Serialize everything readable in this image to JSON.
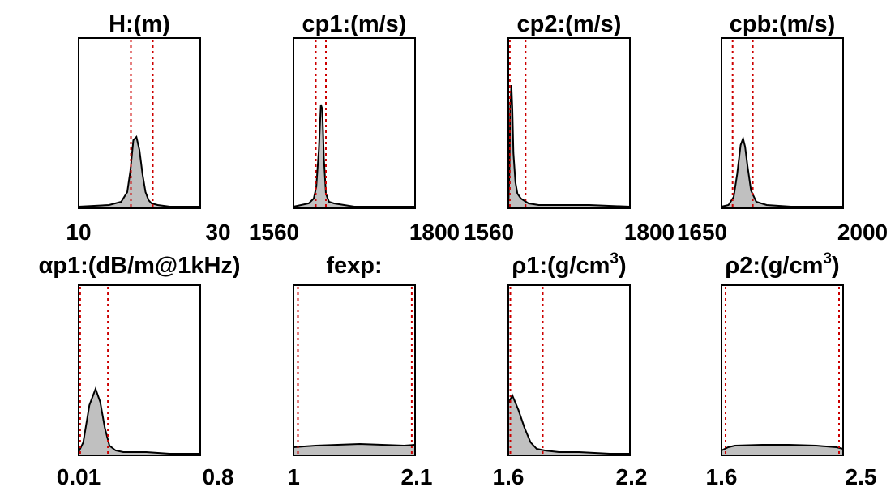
{
  "figure": {
    "line_color": "#000000",
    "fill_color": "#c0c0c0",
    "bound_color": "#cc0000"
  },
  "chart_data": [
    {
      "type": "area",
      "title_main": "H:(m)",
      "title_sup": "",
      "xlim": [
        10,
        30
      ],
      "tick_labels": [
        "10",
        "30"
      ],
      "bounds": [
        18.6,
        22.2
      ],
      "x": [
        10,
        15,
        17,
        18,
        18.5,
        19,
        19.5,
        20,
        20.5,
        21,
        21.5,
        22,
        23,
        25,
        30
      ],
      "y": [
        0,
        0.01,
        0.03,
        0.09,
        0.22,
        0.41,
        0.43,
        0.35,
        0.2,
        0.09,
        0.04,
        0.02,
        0.01,
        0,
        0
      ]
    },
    {
      "type": "area",
      "title_main": "cp1:(m/s)",
      "title_sup": "",
      "xlim": [
        1560,
        1800
      ],
      "tick_labels": [
        "1560",
        "1800"
      ],
      "bounds": [
        1604,
        1624
      ],
      "x": [
        1560,
        1590,
        1600,
        1605,
        1610,
        1614,
        1617,
        1620,
        1624,
        1630,
        1640,
        1660,
        1680,
        1800
      ],
      "y": [
        0,
        0.02,
        0.05,
        0.12,
        0.35,
        0.63,
        0.6,
        0.3,
        0.08,
        0.03,
        0.02,
        0.01,
        0,
        0
      ]
    },
    {
      "type": "area",
      "title_main": "cp2:(m/s)",
      "title_sup": "",
      "xlim": [
        1560,
        1800
      ],
      "tick_labels": [
        "1560",
        "1800"
      ],
      "bounds": [
        1563,
        1594
      ],
      "x": [
        1560,
        1562,
        1564,
        1566,
        1568,
        1570,
        1574,
        1578,
        1585,
        1600,
        1620,
        1660,
        1720,
        1800
      ],
      "y": [
        0,
        0.2,
        0.62,
        0.75,
        0.6,
        0.33,
        0.15,
        0.08,
        0.05,
        0.02,
        0.01,
        0.01,
        0.01,
        0
      ]
    },
    {
      "type": "area",
      "title_main": "cpb:(m/s)",
      "title_sup": "",
      "xlim": [
        1650,
        2000
      ],
      "tick_labels": [
        "1650",
        "2000"
      ],
      "bounds": [
        1682,
        1740
      ],
      "x": [
        1650,
        1670,
        1685,
        1695,
        1705,
        1712,
        1718,
        1725,
        1735,
        1750,
        1780,
        1850,
        2000
      ],
      "y": [
        0,
        0.01,
        0.06,
        0.2,
        0.38,
        0.42,
        0.37,
        0.25,
        0.1,
        0.03,
        0.01,
        0,
        0
      ]
    },
    {
      "type": "area",
      "title_main": "αp1:(dB/m@1kHz)",
      "title_sup": "",
      "xlim": [
        0.01,
        0.8
      ],
      "tick_labels": [
        "0.01",
        "0.8"
      ],
      "bounds": [
        0.02,
        0.2
      ],
      "x": [
        0.01,
        0.04,
        0.08,
        0.12,
        0.15,
        0.18,
        0.21,
        0.25,
        0.3,
        0.45,
        0.6,
        0.8
      ],
      "y": [
        0.01,
        0.07,
        0.3,
        0.4,
        0.32,
        0.16,
        0.05,
        0.02,
        0.01,
        0.01,
        0,
        0
      ]
    },
    {
      "type": "area",
      "title_main": "fexp:",
      "title_sup": "",
      "xlim": [
        1,
        2.1
      ],
      "tick_labels": [
        "1",
        "2.1"
      ],
      "bounds": [
        1.04,
        2.07
      ],
      "x": [
        1,
        1.2,
        1.4,
        1.6,
        1.8,
        2.0,
        2.1
      ],
      "y": [
        0.04,
        0.05,
        0.055,
        0.06,
        0.055,
        0.05,
        0.055
      ]
    },
    {
      "type": "area",
      "title_main": "ρ1:(g/cm",
      "title_sup": "3",
      "xlim": [
        1.6,
        2.2
      ],
      "tick_labels": [
        "1.6",
        "2.2"
      ],
      "bounds": [
        1.61,
        1.77
      ],
      "x": [
        1.6,
        1.62,
        1.65,
        1.68,
        1.71,
        1.74,
        1.78,
        1.85,
        1.95,
        2.1,
        2.2
      ],
      "y": [
        0.31,
        0.36,
        0.27,
        0.16,
        0.07,
        0.03,
        0.02,
        0.01,
        0.01,
        0,
        0
      ]
    },
    {
      "type": "area",
      "title_main": "ρ2:(g/cm",
      "title_sup": "3",
      "xlim": [
        1.6,
        2.5
      ],
      "tick_labels": [
        "1.6",
        "2.5"
      ],
      "bounds": [
        1.63,
        2.47
      ],
      "x": [
        1.6,
        1.65,
        1.7,
        1.9,
        2.1,
        2.3,
        2.45,
        2.5
      ],
      "y": [
        0.02,
        0.04,
        0.05,
        0.055,
        0.055,
        0.05,
        0.04,
        0.03
      ]
    }
  ]
}
